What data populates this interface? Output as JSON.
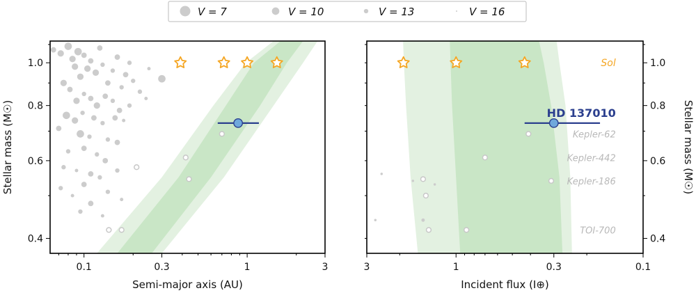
{
  "legend": {
    "placement": "top-center",
    "entries": [
      {
        "label": "V = 7",
        "size": 7
      },
      {
        "label": "V = 10",
        "size": 10
      },
      {
        "label": "V = 13",
        "size": 13
      },
      {
        "label": "V = 16",
        "size": 16
      }
    ]
  },
  "colors": {
    "hz_optimistic": "#e3f1e1",
    "hz_conservative": "#c9e6c6",
    "background_planets": "#cccccc",
    "solar_planets": "#f5a623",
    "target_fill": "#6fa8dc",
    "target_line": "#2b3f8e",
    "known_hz_label": "#b8b8b8",
    "sol_label": "#f5a623"
  },
  "chart_data": [
    {
      "type": "scatter",
      "panel": "left",
      "xlabel": "Semi-major axis (AU)",
      "ylabel": "Stellar mass (M☉)",
      "x_scale": "log",
      "y_scale": "log",
      "xlim": [
        0.062,
        3.0
      ],
      "ylim": [
        0.37,
        1.12
      ],
      "x_ticks": [
        {
          "v": 0.1,
          "l": "0.1"
        },
        {
          "v": 0.3,
          "l": "0.3"
        },
        {
          "v": 1,
          "l": "1"
        },
        {
          "v": 3,
          "l": "3"
        }
      ],
      "y_ticks": [
        {
          "v": 0.4,
          "l": "0.4"
        },
        {
          "v": 0.6,
          "l": "0.6"
        },
        {
          "v": 0.8,
          "l": "0.8"
        },
        {
          "v": 1.0,
          "l": "1.0"
        }
      ],
      "hz_optimistic": {
        "lower": [
          [
            0.12,
            0.37
          ],
          [
            0.3,
            0.55
          ],
          [
            0.62,
            0.8
          ],
          [
            0.98,
            1.0
          ],
          [
            1.45,
            1.12
          ]
        ],
        "upper": [
          [
            0.3,
            0.37
          ],
          [
            0.72,
            0.55
          ],
          [
            1.45,
            0.8
          ],
          [
            2.2,
            1.0
          ],
          [
            2.7,
            1.12
          ]
        ]
      },
      "hz_conservative": {
        "lower": [
          [
            0.16,
            0.37
          ],
          [
            0.38,
            0.55
          ],
          [
            0.74,
            0.8
          ],
          [
            1.1,
            1.0
          ],
          [
            1.6,
            1.12
          ]
        ],
        "upper": [
          [
            0.26,
            0.37
          ],
          [
            0.6,
            0.55
          ],
          [
            1.2,
            0.8
          ],
          [
            1.75,
            1.0
          ],
          [
            2.2,
            1.12
          ]
        ]
      },
      "solar_system": [
        {
          "x": 0.39,
          "y": 1.0
        },
        {
          "x": 0.72,
          "y": 1.0
        },
        {
          "x": 1.0,
          "y": 1.0
        },
        {
          "x": 1.52,
          "y": 1.0
        }
      ],
      "known_hz_planets": [
        {
          "x": 0.7,
          "y": 0.69
        },
        {
          "x": 0.42,
          "y": 0.61
        },
        {
          "x": 0.44,
          "y": 0.545
        },
        {
          "x": 0.21,
          "y": 0.58
        },
        {
          "x": 0.17,
          "y": 0.418
        },
        {
          "x": 0.142,
          "y": 0.418
        }
      ],
      "target": {
        "x": 0.88,
        "y": 0.73,
        "xerr": [
          0.66,
          1.18
        ]
      },
      "background": [
        {
          "x": 0.065,
          "y": 1.07,
          "v": 12
        },
        {
          "x": 0.072,
          "y": 1.05,
          "v": 11
        },
        {
          "x": 0.08,
          "y": 1.09,
          "v": 10
        },
        {
          "x": 0.085,
          "y": 1.02,
          "v": 11
        },
        {
          "x": 0.088,
          "y": 0.98,
          "v": 11
        },
        {
          "x": 0.092,
          "y": 1.06,
          "v": 10
        },
        {
          "x": 0.095,
          "y": 0.93,
          "v": 11
        },
        {
          "x": 0.1,
          "y": 1.04,
          "v": 12
        },
        {
          "x": 0.105,
          "y": 0.97,
          "v": 11
        },
        {
          "x": 0.11,
          "y": 1.01,
          "v": 12
        },
        {
          "x": 0.118,
          "y": 0.95,
          "v": 11
        },
        {
          "x": 0.125,
          "y": 1.08,
          "v": 12
        },
        {
          "x": 0.13,
          "y": 0.99,
          "v": 13
        },
        {
          "x": 0.14,
          "y": 0.9,
          "v": 12
        },
        {
          "x": 0.15,
          "y": 0.96,
          "v": 13
        },
        {
          "x": 0.16,
          "y": 1.03,
          "v": 12
        },
        {
          "x": 0.17,
          "y": 0.88,
          "v": 13
        },
        {
          "x": 0.18,
          "y": 0.94,
          "v": 12
        },
        {
          "x": 0.19,
          "y": 1.0,
          "v": 13
        },
        {
          "x": 0.2,
          "y": 0.91,
          "v": 13
        },
        {
          "x": 0.22,
          "y": 0.86,
          "v": 13
        },
        {
          "x": 0.25,
          "y": 0.97,
          "v": 14
        },
        {
          "x": 0.3,
          "y": 0.92,
          "v": 10
        },
        {
          "x": 0.075,
          "y": 0.9,
          "v": 11
        },
        {
          "x": 0.082,
          "y": 0.87,
          "v": 12
        },
        {
          "x": 0.09,
          "y": 0.82,
          "v": 11
        },
        {
          "x": 0.1,
          "y": 0.85,
          "v": 13
        },
        {
          "x": 0.11,
          "y": 0.83,
          "v": 12
        },
        {
          "x": 0.12,
          "y": 0.8,
          "v": 11
        },
        {
          "x": 0.135,
          "y": 0.84,
          "v": 12
        },
        {
          "x": 0.15,
          "y": 0.82,
          "v": 13
        },
        {
          "x": 0.165,
          "y": 0.78,
          "v": 12
        },
        {
          "x": 0.19,
          "y": 0.8,
          "v": 13
        },
        {
          "x": 0.24,
          "y": 0.83,
          "v": 14
        },
        {
          "x": 0.078,
          "y": 0.76,
          "v": 10
        },
        {
          "x": 0.088,
          "y": 0.74,
          "v": 11
        },
        {
          "x": 0.098,
          "y": 0.77,
          "v": 13
        },
        {
          "x": 0.115,
          "y": 0.75,
          "v": 12
        },
        {
          "x": 0.13,
          "y": 0.73,
          "v": 13
        },
        {
          "x": 0.155,
          "y": 0.75,
          "v": 12
        },
        {
          "x": 0.175,
          "y": 0.74,
          "v": 14
        },
        {
          "x": 0.095,
          "y": 0.69,
          "v": 10
        },
        {
          "x": 0.07,
          "y": 0.71,
          "v": 12
        },
        {
          "x": 0.108,
          "y": 0.68,
          "v": 13
        },
        {
          "x": 0.14,
          "y": 0.67,
          "v": 13
        },
        {
          "x": 0.16,
          "y": 0.66,
          "v": 12
        },
        {
          "x": 0.08,
          "y": 0.63,
          "v": 13
        },
        {
          "x": 0.1,
          "y": 0.64,
          "v": 12
        },
        {
          "x": 0.12,
          "y": 0.62,
          "v": 13
        },
        {
          "x": 0.135,
          "y": 0.6,
          "v": 12
        },
        {
          "x": 0.075,
          "y": 0.58,
          "v": 13
        },
        {
          "x": 0.09,
          "y": 0.57,
          "v": 14
        },
        {
          "x": 0.11,
          "y": 0.56,
          "v": 12
        },
        {
          "x": 0.125,
          "y": 0.55,
          "v": 13
        },
        {
          "x": 0.16,
          "y": 0.57,
          "v": 13
        },
        {
          "x": 0.072,
          "y": 0.52,
          "v": 13
        },
        {
          "x": 0.1,
          "y": 0.53,
          "v": 12
        },
        {
          "x": 0.085,
          "y": 0.5,
          "v": 14
        },
        {
          "x": 0.14,
          "y": 0.51,
          "v": 13
        },
        {
          "x": 0.11,
          "y": 0.48,
          "v": 12
        },
        {
          "x": 0.17,
          "y": 0.49,
          "v": 14
        },
        {
          "x": 0.095,
          "y": 0.46,
          "v": 13
        },
        {
          "x": 0.13,
          "y": 0.45,
          "v": 14
        }
      ]
    },
    {
      "type": "scatter",
      "panel": "right",
      "xlabel": "Incident flux (I⊕)",
      "ylabel": "Stellar mass (M☉)",
      "x_scale": "log",
      "x_inverted": true,
      "y_scale": "log",
      "xlim": [
        3.0,
        0.1
      ],
      "ylim": [
        0.37,
        1.12
      ],
      "x_ticks": [
        {
          "v": 3,
          "l": "3"
        },
        {
          "v": 1,
          "l": "1"
        },
        {
          "v": 0.3,
          "l": "0.3"
        },
        {
          "v": 0.1,
          "l": "0.1"
        }
      ],
      "y_ticks": [
        {
          "v": 0.4,
          "l": "0.4"
        },
        {
          "v": 0.6,
          "l": "0.6"
        },
        {
          "v": 0.8,
          "l": "0.8"
        },
        {
          "v": 1.0,
          "l": "1.0"
        }
      ],
      "hz_optimistic": {
        "lower": [
          [
            1.6,
            0.37
          ],
          [
            1.75,
            0.55
          ],
          [
            1.85,
            0.8
          ],
          [
            1.9,
            1.0
          ],
          [
            1.92,
            1.12
          ]
        ],
        "upper": [
          [
            0.24,
            0.37
          ],
          [
            0.245,
            0.55
          ],
          [
            0.26,
            0.8
          ],
          [
            0.28,
            1.0
          ],
          [
            0.29,
            1.12
          ]
        ]
      },
      "hz_conservative": {
        "lower": [
          [
            0.95,
            0.37
          ],
          [
            1.0,
            0.55
          ],
          [
            1.05,
            0.8
          ],
          [
            1.07,
            1.0
          ],
          [
            1.08,
            1.12
          ]
        ],
        "upper": [
          [
            0.27,
            0.37
          ],
          [
            0.28,
            0.55
          ],
          [
            0.31,
            0.8
          ],
          [
            0.34,
            1.0
          ],
          [
            0.36,
            1.12
          ]
        ]
      },
      "solar_system": [
        {
          "x": 1.91,
          "y": 1.0
        },
        {
          "x": 1.0,
          "y": 1.0
        },
        {
          "x": 0.43,
          "y": 1.0
        }
      ],
      "known_hz_planets": [
        {
          "x": 1.5,
          "y": 0.545
        },
        {
          "x": 1.45,
          "y": 0.5
        },
        {
          "x": 1.4,
          "y": 0.418
        },
        {
          "x": 0.88,
          "y": 0.418
        },
        {
          "x": 0.7,
          "y": 0.61
        },
        {
          "x": 0.41,
          "y": 0.69
        },
        {
          "x": 0.31,
          "y": 0.54
        }
      ],
      "target": {
        "x": 0.3,
        "y": 0.73,
        "xerr": [
          0.17,
          0.43
        ]
      },
      "background": [
        {
          "x": 2.5,
          "y": 0.56,
          "v": 15
        },
        {
          "x": 2.7,
          "y": 0.44,
          "v": 15
        },
        {
          "x": 1.7,
          "y": 0.54,
          "v": 15
        },
        {
          "x": 1.5,
          "y": 0.44,
          "v": 14
        },
        {
          "x": 1.3,
          "y": 0.53,
          "v": 15
        }
      ],
      "labels": [
        {
          "text": "Sol",
          "x": 0.14,
          "y": 1.0,
          "kind": "sol"
        },
        {
          "text": "HD 137010",
          "x": 0.14,
          "y": 0.76,
          "kind": "target"
        },
        {
          "text": "Kepler-62",
          "x": 0.14,
          "y": 0.69,
          "kind": "known"
        },
        {
          "text": "Kepler-442",
          "x": 0.14,
          "y": 0.61,
          "kind": "known"
        },
        {
          "text": "Kepler-186",
          "x": 0.14,
          "y": 0.54,
          "kind": "known"
        },
        {
          "text": "TOI-700",
          "x": 0.14,
          "y": 0.418,
          "kind": "known"
        }
      ]
    }
  ]
}
